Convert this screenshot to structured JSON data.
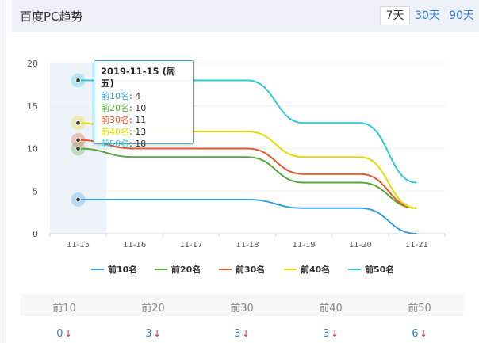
{
  "header": {
    "title": "百度PC趋势",
    "ranges": [
      "7天",
      "30天",
      "90天"
    ],
    "active_range": "7天"
  },
  "chart_data": {
    "type": "line",
    "x": [
      "11-15",
      "11-16",
      "11-17",
      "11-18",
      "11-19",
      "11-20",
      "11-21"
    ],
    "ylim": [
      0,
      20
    ],
    "yticks": [
      0,
      5,
      10,
      15,
      20
    ],
    "grid": true,
    "legend_position": "bottom",
    "series": [
      {
        "name": "前10名",
        "color": "#3a9fdb",
        "values": [
          4,
          4,
          4,
          4,
          3,
          3,
          0
        ]
      },
      {
        "name": "前20名",
        "color": "#56a83a",
        "values": [
          10,
          9,
          9,
          9,
          6,
          6,
          3
        ]
      },
      {
        "name": "前30名",
        "color": "#e4572e",
        "values": [
          11,
          10,
          10,
          10,
          7,
          7,
          3
        ]
      },
      {
        "name": "前40名",
        "color": "#e2dc07",
        "values": [
          13,
          12,
          12,
          12,
          9,
          9,
          3
        ]
      },
      {
        "name": "前50名",
        "color": "#32c8dc",
        "values": [
          18,
          18,
          18,
          18,
          13,
          13,
          6
        ]
      }
    ],
    "highlight_index": 0,
    "tooltip": {
      "date": "2019-11-15 (周五)",
      "rows": [
        {
          "label": "前10名",
          "value": "4"
        },
        {
          "label": "前20名",
          "value": "10"
        },
        {
          "label": "前30名",
          "value": "11"
        },
        {
          "label": "前40名",
          "value": "13"
        },
        {
          "label": "前50名",
          "value": "18"
        }
      ]
    }
  },
  "stats": [
    {
      "label": "前10",
      "value": "0"
    },
    {
      "label": "前20",
      "value": "3"
    },
    {
      "label": "前30",
      "value": "3"
    },
    {
      "label": "前40",
      "value": "3"
    },
    {
      "label": "前50",
      "value": "6"
    }
  ]
}
